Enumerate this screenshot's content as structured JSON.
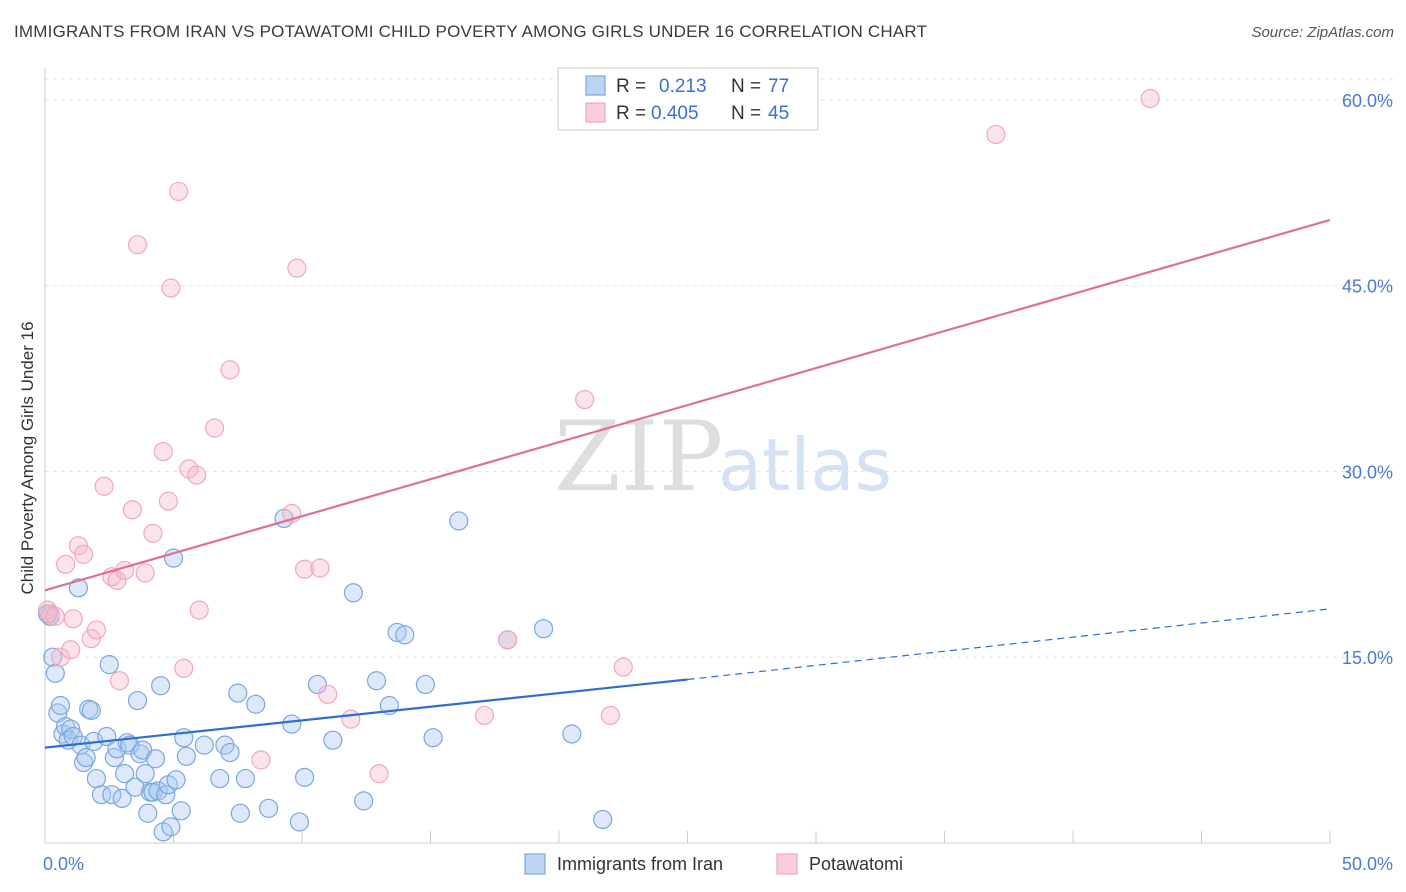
{
  "title": "IMMIGRANTS FROM IRAN VS POTAWATOMI CHILD POVERTY AMONG GIRLS UNDER 16 CORRELATION CHART",
  "source": "Source: ZipAtlas.com",
  "watermark": {
    "part1": "ZIP",
    "part2": "atlas"
  },
  "chart_data": {
    "type": "scatter",
    "ylabel": "Child Poverty Among Girls Under 16",
    "xlim": [
      0,
      50
    ],
    "ylim": [
      0,
      62
    ],
    "x_ticks": [
      {
        "value": 0,
        "label": "0.0%"
      },
      {
        "value": 50,
        "label": "50.0%"
      }
    ],
    "y_ticks": [
      {
        "value": 15,
        "label": "15.0%"
      },
      {
        "value": 30,
        "label": "30.0%"
      },
      {
        "value": 45,
        "label": "45.0%"
      },
      {
        "value": 60,
        "label": "60.0%"
      }
    ],
    "grid": true,
    "legend_top": [
      {
        "r_label": "R =",
        "r_value": "0.213",
        "n_label": "N =",
        "n_value": "77"
      },
      {
        "r_label": "R =",
        "r_value": "0.405",
        "n_label": "N =",
        "n_value": "45"
      }
    ],
    "series": [
      {
        "name": "Immigrants from Iran",
        "color": "#7aa7e0",
        "line_color": "#2d6fd0",
        "trend": {
          "x1": 0,
          "y1": 7.7,
          "x2": 25,
          "y2": 13.2,
          "dash_to_x": 50,
          "dash_to_y": 18.9
        },
        "points": [
          [
            0.2,
            18.3
          ],
          [
            0.3,
            15.0
          ],
          [
            0.4,
            13.7
          ],
          [
            0.5,
            10.5
          ],
          [
            0.6,
            11.1
          ],
          [
            0.7,
            8.8
          ],
          [
            0.8,
            9.4
          ],
          [
            0.9,
            8.3
          ],
          [
            1.0,
            9.2
          ],
          [
            1.1,
            8.6
          ],
          [
            1.3,
            20.6
          ],
          [
            1.4,
            7.9
          ],
          [
            1.5,
            6.5
          ],
          [
            1.6,
            6.9
          ],
          [
            1.7,
            10.8
          ],
          [
            1.8,
            10.7
          ],
          [
            1.9,
            8.2
          ],
          [
            2.0,
            5.2
          ],
          [
            2.2,
            3.9
          ],
          [
            2.4,
            8.6
          ],
          [
            2.5,
            14.4
          ],
          [
            2.6,
            3.9
          ],
          [
            2.7,
            6.9
          ],
          [
            2.8,
            7.6
          ],
          [
            3.0,
            3.6
          ],
          [
            3.1,
            5.6
          ],
          [
            3.2,
            8.1
          ],
          [
            3.3,
            7.9
          ],
          [
            3.5,
            4.5
          ],
          [
            3.6,
            11.5
          ],
          [
            3.7,
            7.2
          ],
          [
            3.8,
            7.5
          ],
          [
            3.9,
            5.6
          ],
          [
            4.0,
            2.4
          ],
          [
            4.1,
            4.1
          ],
          [
            4.2,
            4.1
          ],
          [
            4.3,
            6.8
          ],
          [
            4.4,
            4.2
          ],
          [
            4.5,
            12.7
          ],
          [
            4.6,
            0.9
          ],
          [
            4.7,
            3.9
          ],
          [
            4.8,
            4.7
          ],
          [
            4.9,
            1.3
          ],
          [
            5.0,
            23.0
          ],
          [
            5.1,
            5.1
          ],
          [
            5.3,
            2.6
          ],
          [
            5.4,
            8.5
          ],
          [
            5.5,
            7.0
          ],
          [
            6.2,
            7.9
          ],
          [
            6.8,
            5.2
          ],
          [
            7.0,
            7.9
          ],
          [
            7.2,
            7.3
          ],
          [
            7.5,
            12.1
          ],
          [
            7.6,
            2.4
          ],
          [
            7.8,
            5.2
          ],
          [
            8.2,
            11.2
          ],
          [
            8.7,
            2.8
          ],
          [
            9.3,
            26.2
          ],
          [
            9.6,
            9.6
          ],
          [
            9.9,
            1.7
          ],
          [
            10.1,
            5.3
          ],
          [
            10.6,
            12.8
          ],
          [
            11.2,
            8.3
          ],
          [
            12.0,
            20.2
          ],
          [
            12.4,
            3.4
          ],
          [
            12.9,
            13.1
          ],
          [
            13.4,
            11.1
          ],
          [
            13.7,
            17.0
          ],
          [
            14.0,
            16.8
          ],
          [
            14.8,
            12.8
          ],
          [
            15.1,
            8.5
          ],
          [
            16.1,
            26.0
          ],
          [
            18.0,
            16.4
          ],
          [
            19.4,
            17.3
          ],
          [
            20.5,
            8.8
          ],
          [
            21.7,
            1.9
          ],
          [
            0.1,
            18.5
          ]
        ]
      },
      {
        "name": "Potawatomi",
        "color": "#f2a7bf",
        "line_color": "#e06f98",
        "trend": {
          "x1": 0,
          "y1": 20.4,
          "x2": 50,
          "y2": 50.3
        },
        "points": [
          [
            0.1,
            18.8
          ],
          [
            0.2,
            18.5
          ],
          [
            0.4,
            18.3
          ],
          [
            0.6,
            15.0
          ],
          [
            0.8,
            22.5
          ],
          [
            1.0,
            15.6
          ],
          [
            1.1,
            18.1
          ],
          [
            1.3,
            24.0
          ],
          [
            1.5,
            23.3
          ],
          [
            1.8,
            16.5
          ],
          [
            2.0,
            17.2
          ],
          [
            2.3,
            28.8
          ],
          [
            2.6,
            21.5
          ],
          [
            2.8,
            21.2
          ],
          [
            2.9,
            13.1
          ],
          [
            3.1,
            22.0
          ],
          [
            3.4,
            26.9
          ],
          [
            3.6,
            48.3
          ],
          [
            3.9,
            21.8
          ],
          [
            4.2,
            25.0
          ],
          [
            4.6,
            31.6
          ],
          [
            4.8,
            27.6
          ],
          [
            4.9,
            44.8
          ],
          [
            5.2,
            52.6
          ],
          [
            5.4,
            14.1
          ],
          [
            5.6,
            30.2
          ],
          [
            5.9,
            29.7
          ],
          [
            6.0,
            18.8
          ],
          [
            6.6,
            33.5
          ],
          [
            7.2,
            38.2
          ],
          [
            8.4,
            6.7
          ],
          [
            9.6,
            26.6
          ],
          [
            9.8,
            46.4
          ],
          [
            10.1,
            22.1
          ],
          [
            10.7,
            22.2
          ],
          [
            11.0,
            12.0
          ],
          [
            11.9,
            10.0
          ],
          [
            13.0,
            5.6
          ],
          [
            17.1,
            10.3
          ],
          [
            18.0,
            16.4
          ],
          [
            21.0,
            35.8
          ],
          [
            22.0,
            10.3
          ],
          [
            22.5,
            14.2
          ],
          [
            37.0,
            57.2
          ],
          [
            43.0,
            60.1
          ]
        ]
      }
    ]
  }
}
